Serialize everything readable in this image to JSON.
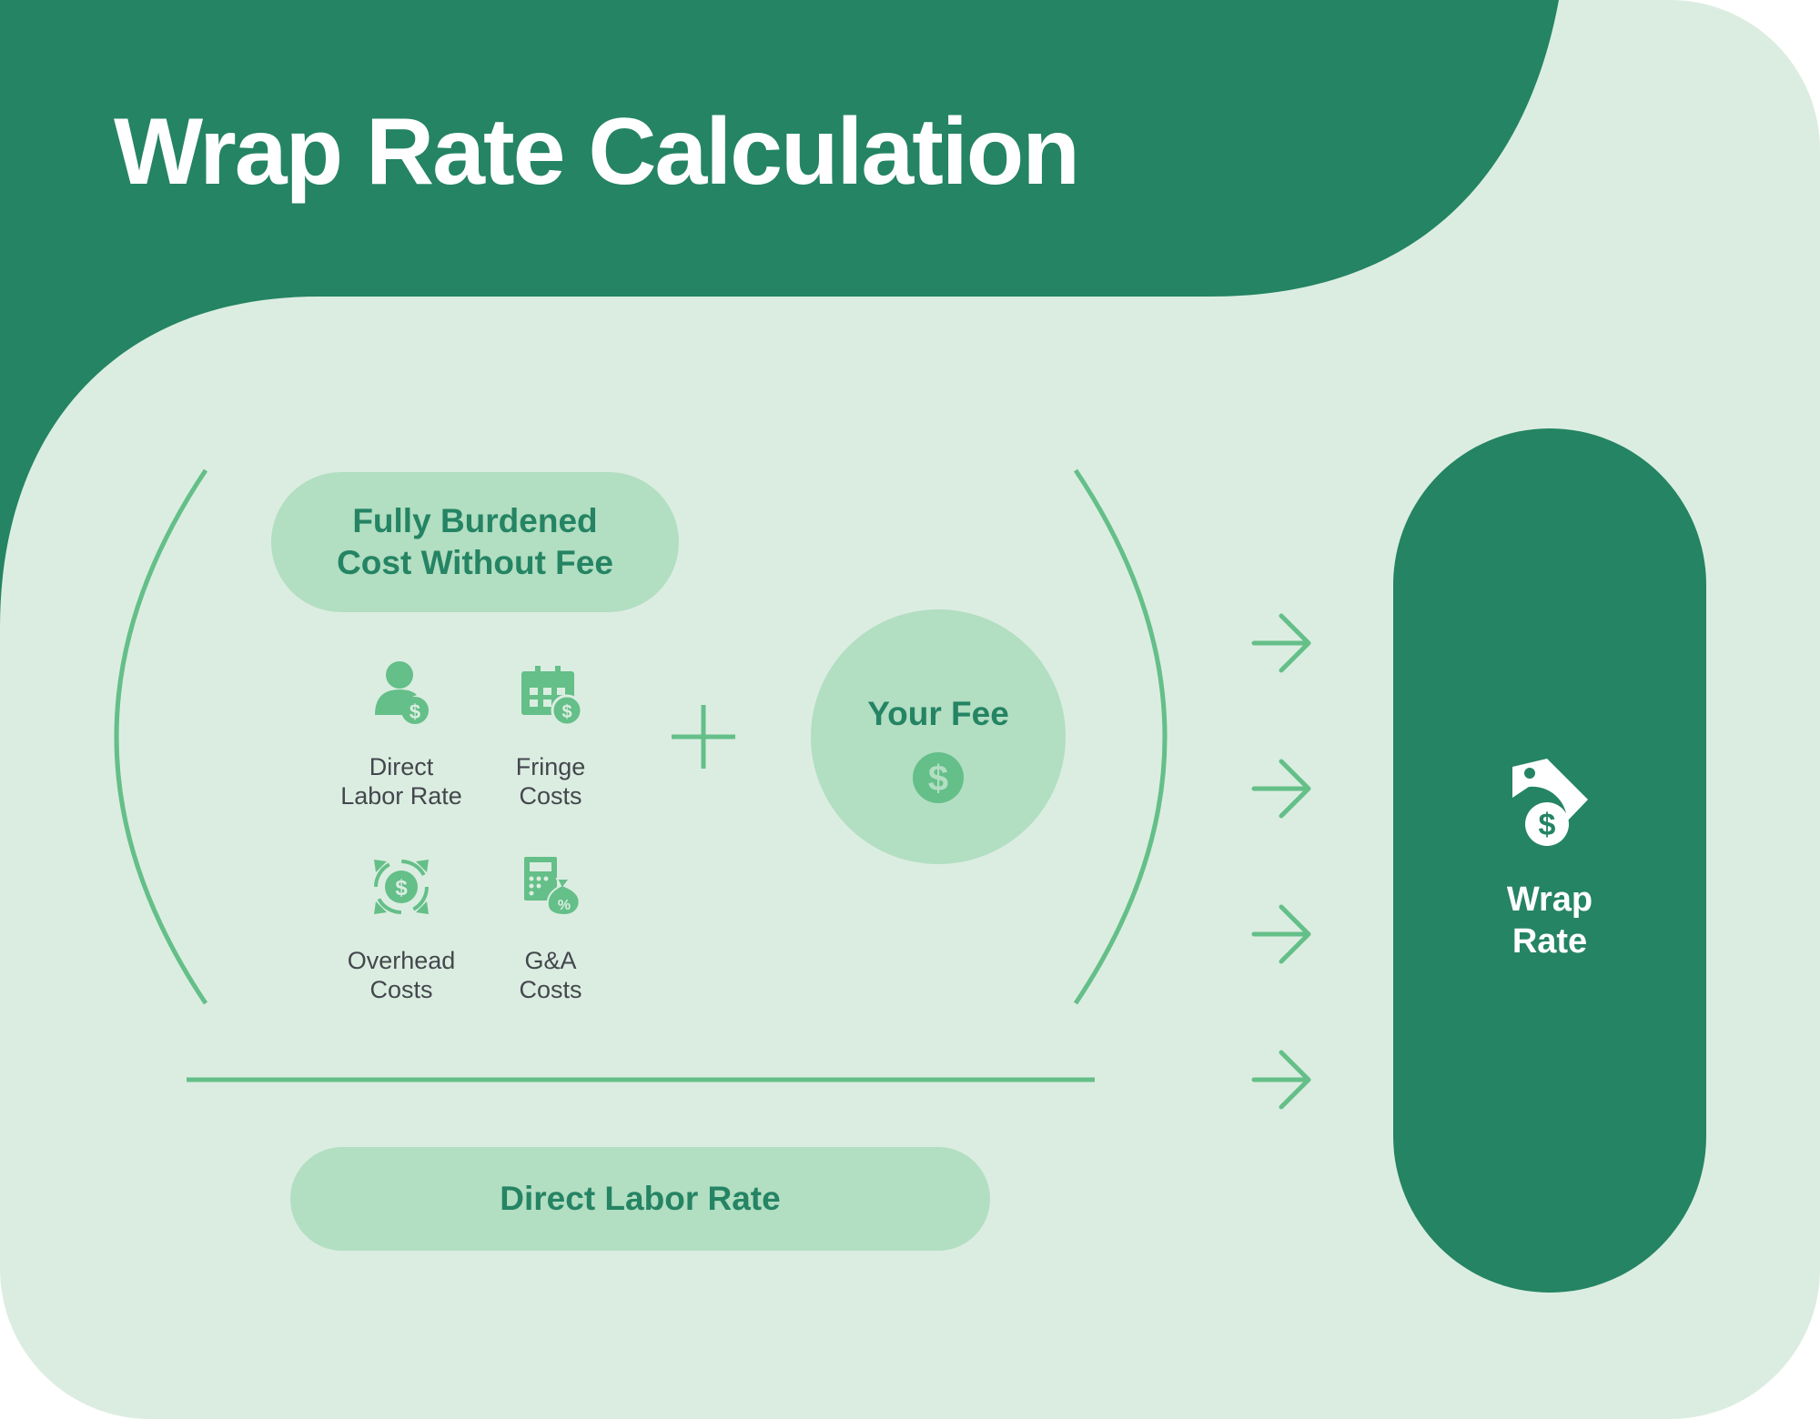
{
  "title": "Wrap Rate Calculation",
  "fully_burdened": {
    "line1": "Fully Burdened",
    "line2": "Cost Without Fee"
  },
  "components": [
    {
      "icon": "person-dollar-icon",
      "line1": "Direct",
      "line2": "Labor Rate"
    },
    {
      "icon": "calendar-dollar-icon",
      "line1": "Fringe",
      "line2": "Costs"
    },
    {
      "icon": "overhead-dollar-icon",
      "line1": "Overhead",
      "line2": "Costs"
    },
    {
      "icon": "calculator-moneybag-icon",
      "line1": "G&A",
      "line2": "Costs"
    }
  ],
  "operator": "+",
  "fee": {
    "label": "Your Fee",
    "icon": "dollar-coin-icon"
  },
  "denominator": "Direct Labor Rate",
  "result": {
    "line1": "Wrap",
    "line2": "Rate",
    "icon": "price-tag-dollar-icon"
  },
  "colors": {
    "dark_green": "#248463",
    "light_bg": "#dbede1",
    "pill": "#b2dec2",
    "accent": "#64bf88",
    "text_gray": "#43474d"
  }
}
